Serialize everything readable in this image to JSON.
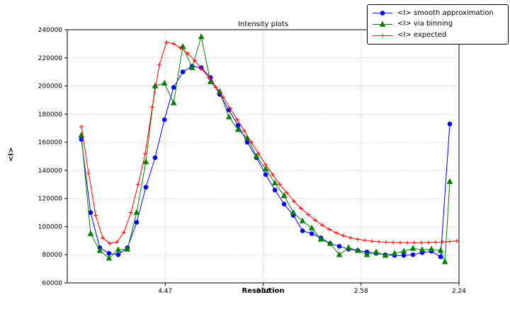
{
  "chart_data": {
    "type": "line",
    "title": "Intensity plots",
    "xlabel": "Resolution",
    "ylabel": "<I>",
    "grid": "dotted",
    "legend_position": "upper right",
    "x_axis": {
      "range": [
        0,
        0.2
      ],
      "ticks": [
        {
          "pos": 0.05,
          "label": "4.47"
        },
        {
          "pos": 0.1,
          "label": "3.16"
        },
        {
          "pos": 0.15,
          "label": "2.58"
        },
        {
          "pos": 0.2,
          "label": "2.24"
        }
      ]
    },
    "y_axis": {
      "range": [
        60000,
        240000
      ],
      "ticks": [
        60000,
        80000,
        100000,
        120000,
        140000,
        160000,
        180000,
        200000,
        220000,
        240000
      ]
    },
    "colors": {
      "grid": "#aaaaaa",
      "axis": "#000000",
      "background": "#ffffff"
    },
    "series": [
      {
        "name": "<I> smooth approximation",
        "color": "#0000ff",
        "marker": "circle",
        "x": [
          0.0072,
          0.0119,
          0.0166,
          0.0213,
          0.026,
          0.0307,
          0.0354,
          0.0401,
          0.0448,
          0.0496,
          0.0543,
          0.059,
          0.0637,
          0.0684,
          0.0731,
          0.0778,
          0.0825,
          0.0872,
          0.0919,
          0.0966,
          0.1013,
          0.106,
          0.1107,
          0.1154,
          0.1201,
          0.1248,
          0.1295,
          0.1342,
          0.1389,
          0.1436,
          0.1483,
          0.153,
          0.1577,
          0.1624,
          0.1671,
          0.1718,
          0.1765,
          0.1812,
          0.1859,
          0.1906,
          0.1953
        ],
        "y": [
          162000,
          110000,
          85000,
          81000,
          80000,
          85000,
          103000,
          128000,
          149000,
          176000,
          199000,
          210000,
          214000,
          213000,
          206000,
          194000,
          183000,
          172000,
          160000,
          149000,
          137000,
          126000,
          116000,
          108000,
          97000,
          95000,
          92000,
          88000,
          86000,
          84000,
          83000,
          82000,
          81000,
          80000,
          79500,
          79500,
          80000,
          81500,
          82500,
          78500,
          173000
        ]
      },
      {
        "name": "<I> via binning",
        "color": "#008000",
        "marker": "triangle",
        "x": [
          0.0072,
          0.0119,
          0.0166,
          0.0213,
          0.026,
          0.0307,
          0.0354,
          0.0401,
          0.0448,
          0.0496,
          0.0543,
          0.059,
          0.0637,
          0.0684,
          0.0731,
          0.0778,
          0.0825,
          0.0872,
          0.0919,
          0.0966,
          0.1013,
          0.106,
          0.1107,
          0.1154,
          0.1201,
          0.1248,
          0.1295,
          0.1342,
          0.1389,
          0.1436,
          0.1483,
          0.153,
          0.1577,
          0.1624,
          0.1671,
          0.1718,
          0.1765,
          0.1812,
          0.1859,
          0.1906,
          0.1928,
          0.1953
        ],
        "y": [
          165000,
          95000,
          83000,
          77500,
          83500,
          84000,
          110000,
          146000,
          200000,
          202000,
          188000,
          228000,
          213000,
          235000,
          203000,
          196000,
          178000,
          169000,
          163000,
          150000,
          141000,
          131000,
          122000,
          110000,
          104000,
          99000,
          91000,
          88000,
          80000,
          85000,
          83000,
          80000,
          82000,
          79500,
          81000,
          82500,
          84500,
          83500,
          84000,
          83000,
          75000,
          132000
        ]
      },
      {
        "name": "<I> expected",
        "color": "#ff0000",
        "marker": "plus",
        "x": [
          0.0072,
          0.0109,
          0.0145,
          0.0181,
          0.0217,
          0.0253,
          0.0289,
          0.0325,
          0.0362,
          0.0398,
          0.0434,
          0.047,
          0.0506,
          0.0543,
          0.0579,
          0.0615,
          0.0651,
          0.0687,
          0.0723,
          0.0759,
          0.0796,
          0.0832,
          0.0868,
          0.0904,
          0.094,
          0.0976,
          0.1013,
          0.1049,
          0.1085,
          0.1121,
          0.1157,
          0.1193,
          0.123,
          0.1266,
          0.1302,
          0.1338,
          0.1374,
          0.141,
          0.1447,
          0.1483,
          0.1519,
          0.1555,
          0.1591,
          0.1627,
          0.1664,
          0.17,
          0.1736,
          0.1772,
          0.1808,
          0.1844,
          0.1881,
          0.1917,
          0.1953,
          0.1989
        ],
        "y": [
          171000,
          138000,
          108000,
          92000,
          88000,
          89000,
          96000,
          110000,
          130000,
          152000,
          185000,
          215000,
          231000,
          230000,
          227000,
          223000,
          218000,
          212000,
          206000,
          199000,
          192000,
          184000,
          176000,
          168000,
          160000,
          152000,
          144000,
          137000,
          130000,
          124000,
          118000,
          113000,
          108500,
          104500,
          101000,
          98000,
          95500,
          93500,
          92000,
          91000,
          90200,
          89600,
          89200,
          88900,
          88700,
          88600,
          88500,
          88500,
          88600,
          88700,
          88900,
          89100,
          89400,
          89800
        ]
      }
    ]
  }
}
